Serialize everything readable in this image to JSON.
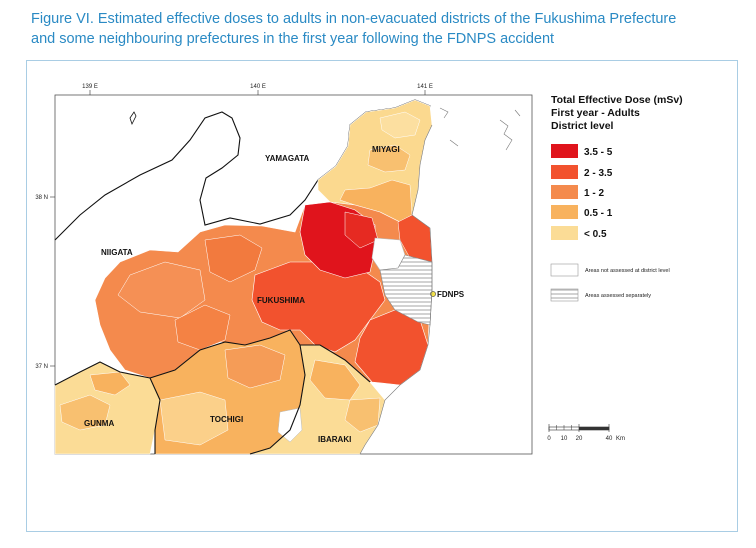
{
  "caption": {
    "line1": "Figure VI. Estimated effective doses to adults in non-evacuated districts of the Fukushima Prefecture",
    "line2": "and some neighbouring prefectures in the first year following the FDNPS accident"
  },
  "map": {
    "lon_ticks": [
      "139 E",
      "140 E",
      "141 E"
    ],
    "lat_ticks": [
      "38 N",
      "37 N"
    ],
    "prefectures": {
      "yamagata": "YAMAGATA",
      "miyagi": "MIYAGI",
      "niigata": "NIIGATA",
      "fukushima": "FUKUSHIMA",
      "gunma": "GUNMA",
      "tochigi": "TOCHIGI",
      "ibaraki": "IBARAKI"
    },
    "plant_label": "FDNPS"
  },
  "legend": {
    "title1": "Total Effective Dose (mSv)",
    "title2": "First year - Adults",
    "title3": "District level",
    "classes": [
      {
        "label": "3.5 - 5",
        "color": "#e0141c"
      },
      {
        "label": "2 - 3.5",
        "color": "#f2522e"
      },
      {
        "label": "1 - 2",
        "color": "#f48a4d"
      },
      {
        "label": "0.5 - 1",
        "color": "#f8b25e"
      },
      {
        "label": "< 0.5",
        "color": "#fbdc96"
      }
    ],
    "not_assessed": "Areas not assessed at district level",
    "separately": "Areas assessed separately"
  },
  "scale_bar": {
    "ticks": [
      "0",
      "10",
      "20",
      "40"
    ],
    "unit": "Km"
  }
}
